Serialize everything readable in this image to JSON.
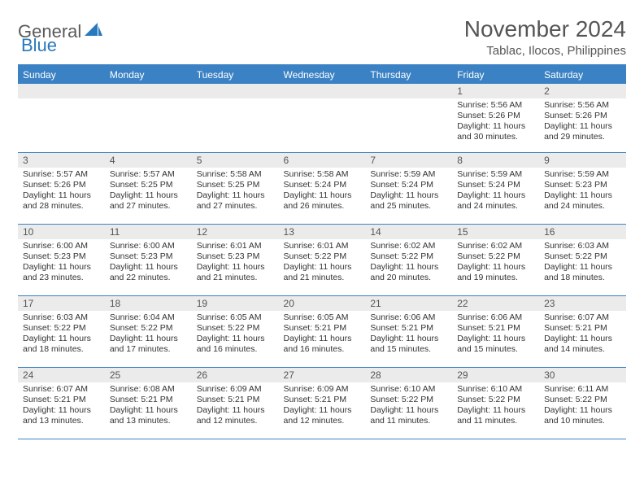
{
  "logo": {
    "part1": "General",
    "part2": "Blue"
  },
  "title": "November 2024",
  "subtitle": "Tablac, Ilocos, Philippines",
  "colors": {
    "header_bg": "#3b82c4",
    "header_text": "#ffffff",
    "daynum_bg": "#ebebeb",
    "rule": "#3b82c4",
    "title_color": "#555555",
    "logo_gray": "#5a5a5a",
    "logo_blue": "#2878bd"
  },
  "day_headers": [
    "Sunday",
    "Monday",
    "Tuesday",
    "Wednesday",
    "Thursday",
    "Friday",
    "Saturday"
  ],
  "weeks": [
    [
      {
        "n": "",
        "lines": []
      },
      {
        "n": "",
        "lines": []
      },
      {
        "n": "",
        "lines": []
      },
      {
        "n": "",
        "lines": []
      },
      {
        "n": "",
        "lines": []
      },
      {
        "n": "1",
        "lines": [
          "Sunrise: 5:56 AM",
          "Sunset: 5:26 PM",
          "Daylight: 11 hours",
          "and 30 minutes."
        ]
      },
      {
        "n": "2",
        "lines": [
          "Sunrise: 5:56 AM",
          "Sunset: 5:26 PM",
          "Daylight: 11 hours",
          "and 29 minutes."
        ]
      }
    ],
    [
      {
        "n": "3",
        "lines": [
          "Sunrise: 5:57 AM",
          "Sunset: 5:26 PM",
          "Daylight: 11 hours",
          "and 28 minutes."
        ]
      },
      {
        "n": "4",
        "lines": [
          "Sunrise: 5:57 AM",
          "Sunset: 5:25 PM",
          "Daylight: 11 hours",
          "and 27 minutes."
        ]
      },
      {
        "n": "5",
        "lines": [
          "Sunrise: 5:58 AM",
          "Sunset: 5:25 PM",
          "Daylight: 11 hours",
          "and 27 minutes."
        ]
      },
      {
        "n": "6",
        "lines": [
          "Sunrise: 5:58 AM",
          "Sunset: 5:24 PM",
          "Daylight: 11 hours",
          "and 26 minutes."
        ]
      },
      {
        "n": "7",
        "lines": [
          "Sunrise: 5:59 AM",
          "Sunset: 5:24 PM",
          "Daylight: 11 hours",
          "and 25 minutes."
        ]
      },
      {
        "n": "8",
        "lines": [
          "Sunrise: 5:59 AM",
          "Sunset: 5:24 PM",
          "Daylight: 11 hours",
          "and 24 minutes."
        ]
      },
      {
        "n": "9",
        "lines": [
          "Sunrise: 5:59 AM",
          "Sunset: 5:23 PM",
          "Daylight: 11 hours",
          "and 24 minutes."
        ]
      }
    ],
    [
      {
        "n": "10",
        "lines": [
          "Sunrise: 6:00 AM",
          "Sunset: 5:23 PM",
          "Daylight: 11 hours",
          "and 23 minutes."
        ]
      },
      {
        "n": "11",
        "lines": [
          "Sunrise: 6:00 AM",
          "Sunset: 5:23 PM",
          "Daylight: 11 hours",
          "and 22 minutes."
        ]
      },
      {
        "n": "12",
        "lines": [
          "Sunrise: 6:01 AM",
          "Sunset: 5:23 PM",
          "Daylight: 11 hours",
          "and 21 minutes."
        ]
      },
      {
        "n": "13",
        "lines": [
          "Sunrise: 6:01 AM",
          "Sunset: 5:22 PM",
          "Daylight: 11 hours",
          "and 21 minutes."
        ]
      },
      {
        "n": "14",
        "lines": [
          "Sunrise: 6:02 AM",
          "Sunset: 5:22 PM",
          "Daylight: 11 hours",
          "and 20 minutes."
        ]
      },
      {
        "n": "15",
        "lines": [
          "Sunrise: 6:02 AM",
          "Sunset: 5:22 PM",
          "Daylight: 11 hours",
          "and 19 minutes."
        ]
      },
      {
        "n": "16",
        "lines": [
          "Sunrise: 6:03 AM",
          "Sunset: 5:22 PM",
          "Daylight: 11 hours",
          "and 18 minutes."
        ]
      }
    ],
    [
      {
        "n": "17",
        "lines": [
          "Sunrise: 6:03 AM",
          "Sunset: 5:22 PM",
          "Daylight: 11 hours",
          "and 18 minutes."
        ]
      },
      {
        "n": "18",
        "lines": [
          "Sunrise: 6:04 AM",
          "Sunset: 5:22 PM",
          "Daylight: 11 hours",
          "and 17 minutes."
        ]
      },
      {
        "n": "19",
        "lines": [
          "Sunrise: 6:05 AM",
          "Sunset: 5:22 PM",
          "Daylight: 11 hours",
          "and 16 minutes."
        ]
      },
      {
        "n": "20",
        "lines": [
          "Sunrise: 6:05 AM",
          "Sunset: 5:21 PM",
          "Daylight: 11 hours",
          "and 16 minutes."
        ]
      },
      {
        "n": "21",
        "lines": [
          "Sunrise: 6:06 AM",
          "Sunset: 5:21 PM",
          "Daylight: 11 hours",
          "and 15 minutes."
        ]
      },
      {
        "n": "22",
        "lines": [
          "Sunrise: 6:06 AM",
          "Sunset: 5:21 PM",
          "Daylight: 11 hours",
          "and 15 minutes."
        ]
      },
      {
        "n": "23",
        "lines": [
          "Sunrise: 6:07 AM",
          "Sunset: 5:21 PM",
          "Daylight: 11 hours",
          "and 14 minutes."
        ]
      }
    ],
    [
      {
        "n": "24",
        "lines": [
          "Sunrise: 6:07 AM",
          "Sunset: 5:21 PM",
          "Daylight: 11 hours",
          "and 13 minutes."
        ]
      },
      {
        "n": "25",
        "lines": [
          "Sunrise: 6:08 AM",
          "Sunset: 5:21 PM",
          "Daylight: 11 hours",
          "and 13 minutes."
        ]
      },
      {
        "n": "26",
        "lines": [
          "Sunrise: 6:09 AM",
          "Sunset: 5:21 PM",
          "Daylight: 11 hours",
          "and 12 minutes."
        ]
      },
      {
        "n": "27",
        "lines": [
          "Sunrise: 6:09 AM",
          "Sunset: 5:21 PM",
          "Daylight: 11 hours",
          "and 12 minutes."
        ]
      },
      {
        "n": "28",
        "lines": [
          "Sunrise: 6:10 AM",
          "Sunset: 5:22 PM",
          "Daylight: 11 hours",
          "and 11 minutes."
        ]
      },
      {
        "n": "29",
        "lines": [
          "Sunrise: 6:10 AM",
          "Sunset: 5:22 PM",
          "Daylight: 11 hours",
          "and 11 minutes."
        ]
      },
      {
        "n": "30",
        "lines": [
          "Sunrise: 6:11 AM",
          "Sunset: 5:22 PM",
          "Daylight: 11 hours",
          "and 10 minutes."
        ]
      }
    ]
  ]
}
